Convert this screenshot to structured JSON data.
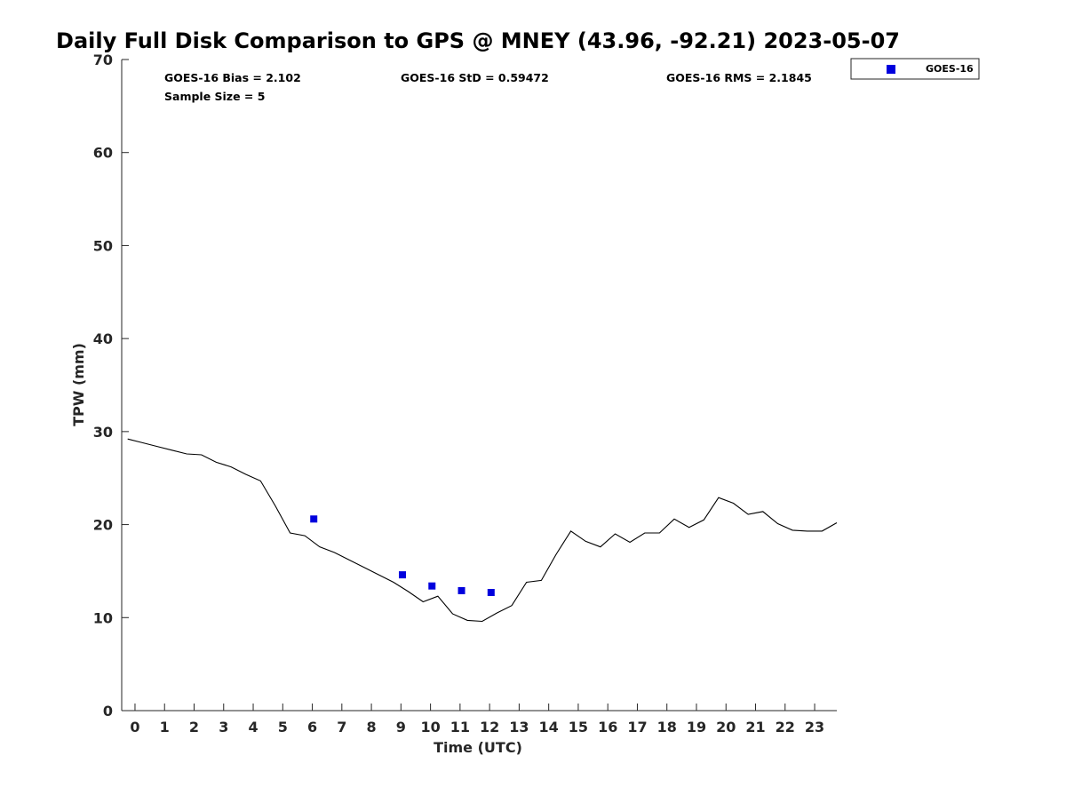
{
  "chart_data": {
    "type": "scatter",
    "title": "Daily Full Disk Comparison to GPS @ MNEY (43.96, -92.21) 2023-05-07",
    "xlabel": "Time (UTC)",
    "ylabel": "TPW (mm)",
    "xlim": [
      -0.45,
      23.75
    ],
    "ylim": [
      0,
      70
    ],
    "xticks": [
      0,
      1,
      2,
      3,
      4,
      5,
      6,
      7,
      8,
      9,
      10,
      11,
      12,
      13,
      14,
      15,
      16,
      17,
      18,
      19,
      20,
      21,
      22,
      23
    ],
    "yticks": [
      0,
      10,
      20,
      30,
      40,
      50,
      60,
      70
    ],
    "grid": false,
    "legend_position": "top-right, outside plot",
    "stats": {
      "bias": "GOES-16 Bias = 2.102",
      "std": "GOES-16 StD = 0.59472",
      "rms": "GOES-16 RMS = 2.1845",
      "sample": "Sample Size = 5"
    },
    "series": [
      {
        "name": "GOES-16",
        "kind": "scatter",
        "marker": "square",
        "color": "#0000dd",
        "x": [
          6.05,
          9.05,
          10.05,
          11.05,
          12.05
        ],
        "y": [
          20.6,
          14.6,
          13.4,
          12.9,
          12.7
        ]
      },
      {
        "kind": "line",
        "color": "#000000",
        "x": [
          -0.25,
          0.25,
          0.75,
          1.25,
          1.75,
          2.25,
          2.75,
          3.25,
          3.75,
          4.25,
          4.75,
          5.25,
          5.75,
          6.25,
          6.75,
          7.25,
          7.75,
          8.25,
          8.75,
          9.25,
          9.75,
          10.25,
          10.75,
          11.25,
          11.75,
          12.25,
          12.75,
          13.25,
          13.75,
          14.25,
          14.75,
          15.25,
          15.75,
          16.25,
          16.75,
          17.25,
          17.75,
          18.25,
          18.75,
          19.25,
          19.75,
          20.25,
          20.75,
          21.25,
          21.75,
          22.25,
          22.75,
          23.25,
          23.75
        ],
        "y": [
          29.2,
          28.8,
          28.4,
          28.0,
          27.6,
          27.5,
          26.7,
          26.2,
          25.4,
          24.7,
          22.0,
          19.1,
          18.8,
          17.6,
          17.0,
          16.2,
          15.4,
          14.6,
          13.8,
          12.8,
          11.7,
          12.3,
          10.4,
          9.7,
          9.6,
          10.5,
          11.3,
          13.8,
          14.0,
          16.8,
          19.3,
          18.2,
          17.6,
          19.0,
          18.1,
          19.1,
          19.1,
          20.6,
          19.7,
          20.5,
          22.9,
          22.3,
          21.1,
          21.4,
          20.1,
          19.4,
          19.3,
          19.3,
          20.2
        ]
      }
    ]
  }
}
